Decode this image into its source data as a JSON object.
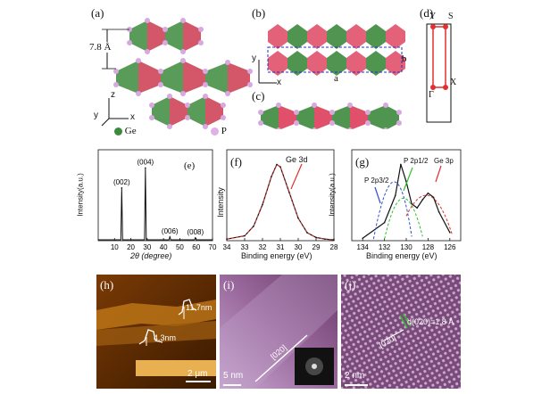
{
  "panels": {
    "a": {
      "label": "(a)",
      "interlayer_distance": "7.8 Å",
      "axis_z": "z",
      "axis_y": "y",
      "axis_x": "x",
      "legend": [
        {
          "label": "Ge",
          "color": "#3c8a3c"
        },
        {
          "label": "P",
          "color": "#e0b0e8"
        }
      ]
    },
    "b": {
      "label": "(b)",
      "axis_y": "y",
      "axis_x": "x",
      "lattice_a": "a",
      "lattice_b": "b"
    },
    "c": {
      "label": "(c)"
    },
    "d": {
      "label": "(d)",
      "points": [
        "Y",
        "S",
        "Γ",
        "X"
      ]
    },
    "e": {
      "label": "(e)",
      "ylabel": "Intensity(a.u.)",
      "xlabel": "2θ (degree)",
      "xticks": [
        "10",
        "20",
        "30",
        "40",
        "50",
        "60",
        "70"
      ],
      "peak_labels": [
        "(002)",
        "(004)",
        "(006)",
        "(008)"
      ]
    },
    "f": {
      "label": "(f)",
      "ylabel": "Intensity",
      "xlabel": "Binding energy (eV)",
      "xticks": [
        "34",
        "33",
        "32",
        "31",
        "30",
        "29",
        "28"
      ],
      "annotation": "Ge 3d"
    },
    "g": {
      "label": "(g)",
      "ylabel": "Intensity(a.u.)",
      "xlabel": "Binding energy (eV)",
      "xticks": [
        "134",
        "132",
        "130",
        "128",
        "126"
      ],
      "annotations": [
        "P 2p3/2",
        "P 2p1/2",
        "Ge 3p"
      ]
    },
    "h": {
      "label": "(h)",
      "height1": "11.7nm",
      "height2": "4.3nm",
      "scale_bar": "2 μm"
    },
    "i": {
      "label": "(i)",
      "direction": "[020]",
      "scale_bar": "5 nm"
    },
    "j": {
      "label": "(j)",
      "d_spacing": "d(020)=1.8 Å",
      "direction": "[020]",
      "scale_bar": "2 nm"
    }
  },
  "colors": {
    "ge_green": "#3c8a3c",
    "p_pink": "#d8a8e0",
    "ring_red": "#e0506a",
    "bz_red": "#e03030"
  },
  "chart_data": [
    {
      "type": "line",
      "title": "",
      "xlabel": "2θ (degree)",
      "ylabel": "Intensity(a.u.)",
      "xlim": [
        0,
        70
      ],
      "series": [
        {
          "name": "",
          "x": [
            14.4,
            28.9,
            43.9,
            59.5
          ],
          "y": [
            0.58,
            0.8,
            0.04,
            0.03
          ]
        }
      ]
    },
    {
      "type": "line",
      "title": "",
      "xlabel": "Binding energy (eV)",
      "ylabel": "Intensity",
      "xlim": [
        34,
        28
      ],
      "series": [
        {
          "name": "",
          "x": [
            34,
            33,
            32.5,
            32,
            31.5,
            31.2,
            31,
            30.5,
            30,
            29.5,
            29,
            28.5,
            28
          ],
          "y": [
            0.02,
            0.06,
            0.18,
            0.45,
            0.8,
            0.95,
            0.92,
            0.6,
            0.28,
            0.1,
            0.04,
            0.02,
            0.01
          ]
        }
      ]
    },
    {
      "type": "line",
      "title": "",
      "xlabel": "Binding energy (eV)",
      "ylabel": "Intensity(a.u.)",
      "xlim": [
        135,
        125
      ],
      "series": [
        {
          "name": "",
          "x": [
            134,
            132,
            131,
            130.5,
            130,
            129.5,
            129,
            128.5,
            128,
            127.5,
            127,
            126
          ],
          "y": [
            0.03,
            0.22,
            0.55,
            0.93,
            0.72,
            0.45,
            0.4,
            0.5,
            0.58,
            0.53,
            0.35,
            0.1
          ]
        }
      ]
    }
  ]
}
